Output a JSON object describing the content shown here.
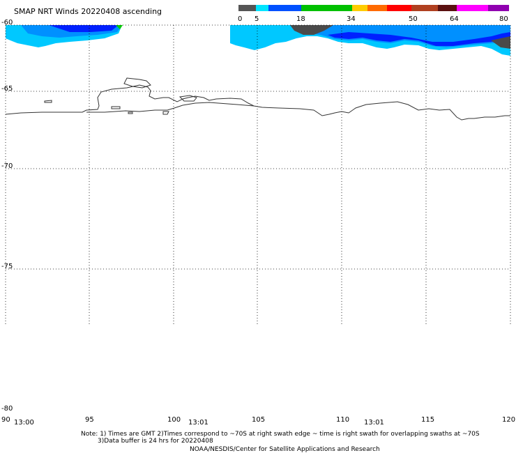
{
  "title": "SMAP NRT Winds 20220408 ascending",
  "colorbar": {
    "tick_labels": [
      "0",
      "5",
      "18",
      "34",
      "50",
      "64",
      "80"
    ],
    "colors": [
      "#555555",
      "#00e5ff",
      "#0050ff",
      "#00c000",
      "#ffcc00",
      "#ff6a00",
      "#ff0000",
      "#b04020",
      "#5a1010",
      "#ff00ff",
      "#9000b0"
    ]
  },
  "map": {
    "lon_range": [
      90,
      120
    ],
    "lat_range": [
      -60,
      -80
    ],
    "lat_labels": [
      "-60",
      "-65",
      "-70",
      "-75",
      "-80"
    ],
    "lon_labels": [
      "90",
      "95",
      "100",
      "105",
      "110",
      "115",
      "120"
    ],
    "time_labels": [
      "13:00",
      "13:01",
      "13:01"
    ],
    "swath_colors": {
      "light": "#00c8ff",
      "mid": "#0090ff",
      "deep": "#0020ff",
      "calm": "#4a4a4a",
      "green": "#00cc00"
    }
  },
  "footer": {
    "note_line1": "Note: 1) Times are GMT 2)Times correspond to ~70S at right swath edge ~ time is right swath for overlapping swaths at ~70S",
    "note_line2": "3)Data buffer is 24 hrs for 20220408",
    "credit": "NOAA/NESDIS/Center for Satellite Applications and Research"
  }
}
